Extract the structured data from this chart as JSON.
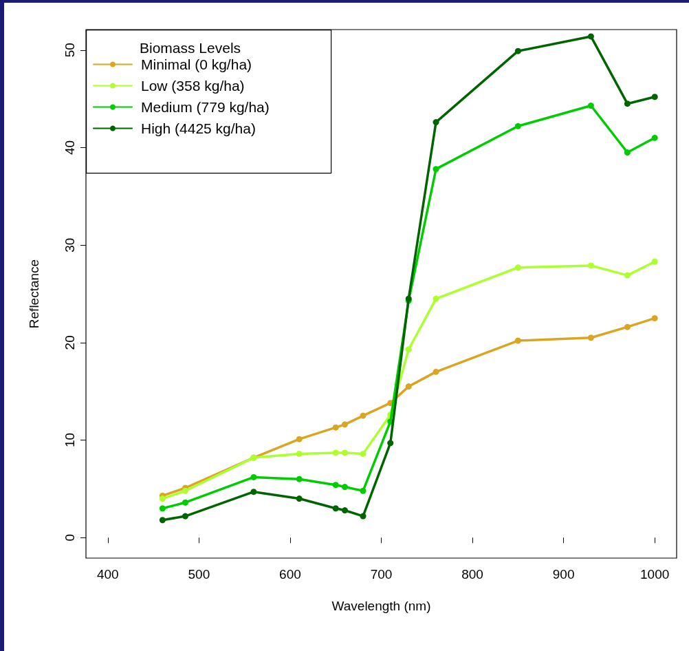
{
  "chart_data": {
    "type": "line",
    "xlabel": "Wavelength (nm)",
    "ylabel": "Reflectance",
    "legend_title": "Biomass Levels",
    "x": [
      460,
      485,
      560,
      610,
      650,
      660,
      680,
      710,
      730,
      760,
      850,
      930,
      970,
      1000
    ],
    "series": [
      {
        "name": "Minimal (0 kg/ha)",
        "color": "#daa520",
        "values": [
          4.3,
          5.1,
          8.2,
          10.1,
          11.3,
          11.6,
          12.5,
          13.8,
          15.5,
          17.0,
          20.2,
          20.5,
          21.6,
          22.5
        ]
      },
      {
        "name": "Low (358 kg/ha)",
        "color": "#adff2f",
        "values": [
          4.0,
          4.8,
          8.2,
          8.6,
          8.7,
          8.7,
          8.6,
          12.6,
          19.3,
          24.5,
          27.7,
          27.9,
          26.9,
          28.3
        ]
      },
      {
        "name": "Medium (779 kg/ha)",
        "color": "#00cd00",
        "values": [
          3.0,
          3.6,
          6.2,
          6.0,
          5.4,
          5.2,
          4.8,
          11.9,
          24.3,
          37.8,
          42.2,
          44.3,
          39.5,
          41.0
        ]
      },
      {
        "name": "High (4425 kg/ha)",
        "color": "#006400",
        "values": [
          1.8,
          2.2,
          4.7,
          4.0,
          3.0,
          2.8,
          2.2,
          9.7,
          24.5,
          42.6,
          49.9,
          51.4,
          44.5,
          45.2
        ]
      }
    ],
    "xlim": [
      376,
      1024
    ],
    "xticks": [
      400,
      500,
      600,
      700,
      800,
      900,
      1000
    ],
    "ylim": [
      -2.1,
      52.1
    ],
    "yticks": [
      0,
      10,
      20,
      30,
      40,
      50
    ],
    "grid": false,
    "legend": "top left",
    "marker": "circle",
    "line_style": "solid"
  }
}
